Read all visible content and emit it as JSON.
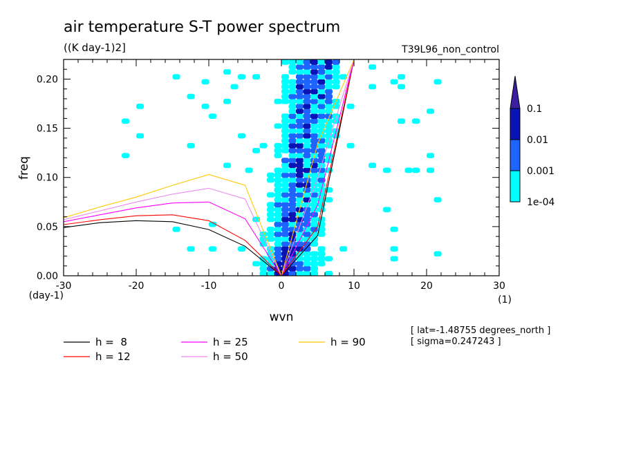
{
  "chart_data": {
    "type": "contour",
    "title": "air temperature S-T power spectrum",
    "units": "((K day-1)2]",
    "run_label": "T39L96_non_control",
    "xlabel": "wvn",
    "ylabel": "freq",
    "x_unit": "(1)",
    "y_unit": "(day-1)",
    "xlim": [
      -30,
      30
    ],
    "ylim": [
      0,
      0.22
    ],
    "x_ticks": [
      -30,
      -20,
      -10,
      0,
      10,
      20,
      30
    ],
    "x_tick_labels": [
      "-30",
      "-20",
      "-10",
      "0",
      "10",
      "20",
      "30"
    ],
    "y_ticks": [
      0,
      0.05,
      0.1,
      0.15,
      0.2
    ],
    "y_tick_labels": [
      "0.00",
      "0.05",
      "0.10",
      "0.15",
      "0.20"
    ],
    "colorbar": {
      "levels": [
        "1e-04",
        "0.001",
        "0.01",
        "0.1"
      ],
      "colors": [
        "#00ffff",
        "#1e64ff",
        "#0a14b4",
        "#3c1ea0"
      ]
    },
    "dispersion_curves": [
      {
        "name": "h =  8",
        "label": "h =  8",
        "h": 8,
        "color": "#000000",
        "x": [
          -30,
          -25,
          -20,
          -15,
          -10,
          -5,
          0,
          5,
          10
        ],
        "y": [
          0.049,
          0.054,
          0.056,
          0.055,
          0.047,
          0.03,
          0.0,
          0.041,
          0.22
        ]
      },
      {
        "name": "h = 12",
        "label": "h = 12",
        "h": 12,
        "color": "#ff0000",
        "x": [
          -30,
          -25,
          -20,
          -15,
          -10,
          -5,
          0,
          5,
          10
        ],
        "y": [
          0.052,
          0.057,
          0.061,
          0.062,
          0.056,
          0.036,
          0.0,
          0.05,
          0.22
        ]
      },
      {
        "name": "h = 25",
        "label": "h = 25",
        "h": 25,
        "color": "#ff00ff",
        "x": [
          -30,
          -25,
          -20,
          -15,
          -10,
          -5,
          0,
          5,
          10
        ],
        "y": [
          0.055,
          0.062,
          0.069,
          0.074,
          0.075,
          0.058,
          0.0,
          0.072,
          0.22
        ]
      },
      {
        "name": "h = 50",
        "label": "h = 50",
        "h": 50,
        "color": "#ee88ee",
        "x": [
          -30,
          -25,
          -20,
          -15,
          -10,
          -5,
          0,
          5,
          10
        ],
        "y": [
          0.057,
          0.066,
          0.075,
          0.083,
          0.089,
          0.078,
          0.0,
          0.1,
          0.22
        ]
      },
      {
        "name": "h = 90",
        "label": "h = 90",
        "h": 90,
        "color": "#ffc800",
        "x": [
          -30,
          -25,
          -20,
          -15,
          -10,
          -5,
          0,
          5,
          10
        ],
        "y": [
          0.059,
          0.07,
          0.08,
          0.092,
          0.103,
          0.092,
          0.0,
          0.134,
          0.22
        ]
      }
    ],
    "annotations": [
      "[ lat=-1.48755 degrees_north ]",
      "[ sigma=0.247243 ]"
    ]
  },
  "legend": [
    {
      "label": "h =  8",
      "color": "#000000"
    },
    {
      "label": "h = 12",
      "color": "#ff0000"
    },
    {
      "label": "h = 25",
      "color": "#ff00ff"
    },
    {
      "label": "h = 50",
      "color": "#ee88ee"
    },
    {
      "label": "h = 90",
      "color": "#ffc800"
    }
  ]
}
